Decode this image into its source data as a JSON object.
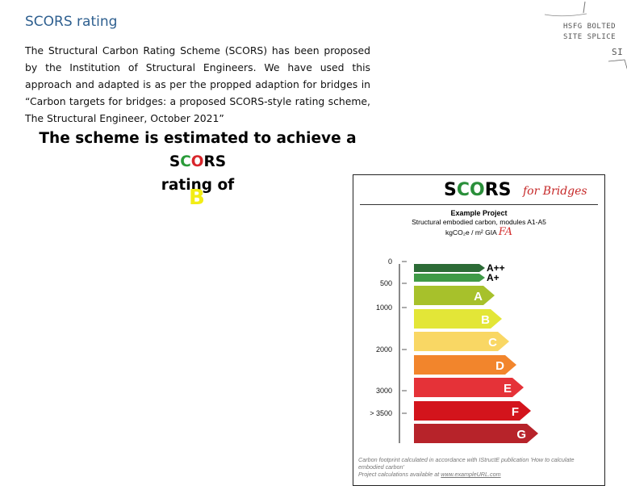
{
  "section": {
    "heading": "SCORS rating",
    "paragraph": "The Structural Carbon Rating Scheme (SCORS) has been proposed by the Institution of Structural Engineers. We have used this approach and adapted is as per the propped adaption for bridges in “Carbon targets for bridges: a proposed SCORS-style rating scheme, The Structural Engineer, October 2021”"
  },
  "estimate": {
    "prefix": "The scheme is estimated to achieve a ",
    "scors_s": "S",
    "scors_c": "C",
    "scors_o": "O",
    "scors_rs": "RS",
    "line2": "rating of",
    "grade": "B"
  },
  "handwritten": {
    "line1": "HSFG BOLTED",
    "line2": "SITE SPLICE",
    "line3": "SI"
  },
  "card": {
    "title_s": "S",
    "title_c": "C",
    "title_o": "O",
    "title_rs": "RS",
    "title_suffix": "for Bridges",
    "project_name": "Example Project",
    "subtitle": "Structural embodied carbon, modules A1-A5",
    "units": "kgCO₂e / m² GIA",
    "units_annotation": "FA",
    "footer_line1": "Carbon footprint calculated in accordance with IStructE publication 'How to calculate embodied carbon'",
    "footer_line2_prefix": "Project calculations available at ",
    "footer_link": "www.exampleURL.com"
  },
  "chart_data": {
    "type": "bar",
    "categories": [
      "A++",
      "A+",
      "A",
      "B",
      "C",
      "D",
      "E",
      "F",
      "G"
    ],
    "colors": [
      "#2c6b36",
      "#3f9a47",
      "#a7c12b",
      "#e3e637",
      "#f9d764",
      "#f2852c",
      "#e53238",
      "#d3141c",
      "#b7232a"
    ],
    "label_colors": [
      "#000000",
      "#000000",
      "#ffffff",
      "#ffffff",
      "#ffffff",
      "#ffffff",
      "#ffffff",
      "#ffffff",
      "#ffffff"
    ],
    "axis_ticks": [
      "0",
      "500",
      "1000",
      "2000",
      "3000",
      "> 3500"
    ],
    "highlighted": "B"
  }
}
